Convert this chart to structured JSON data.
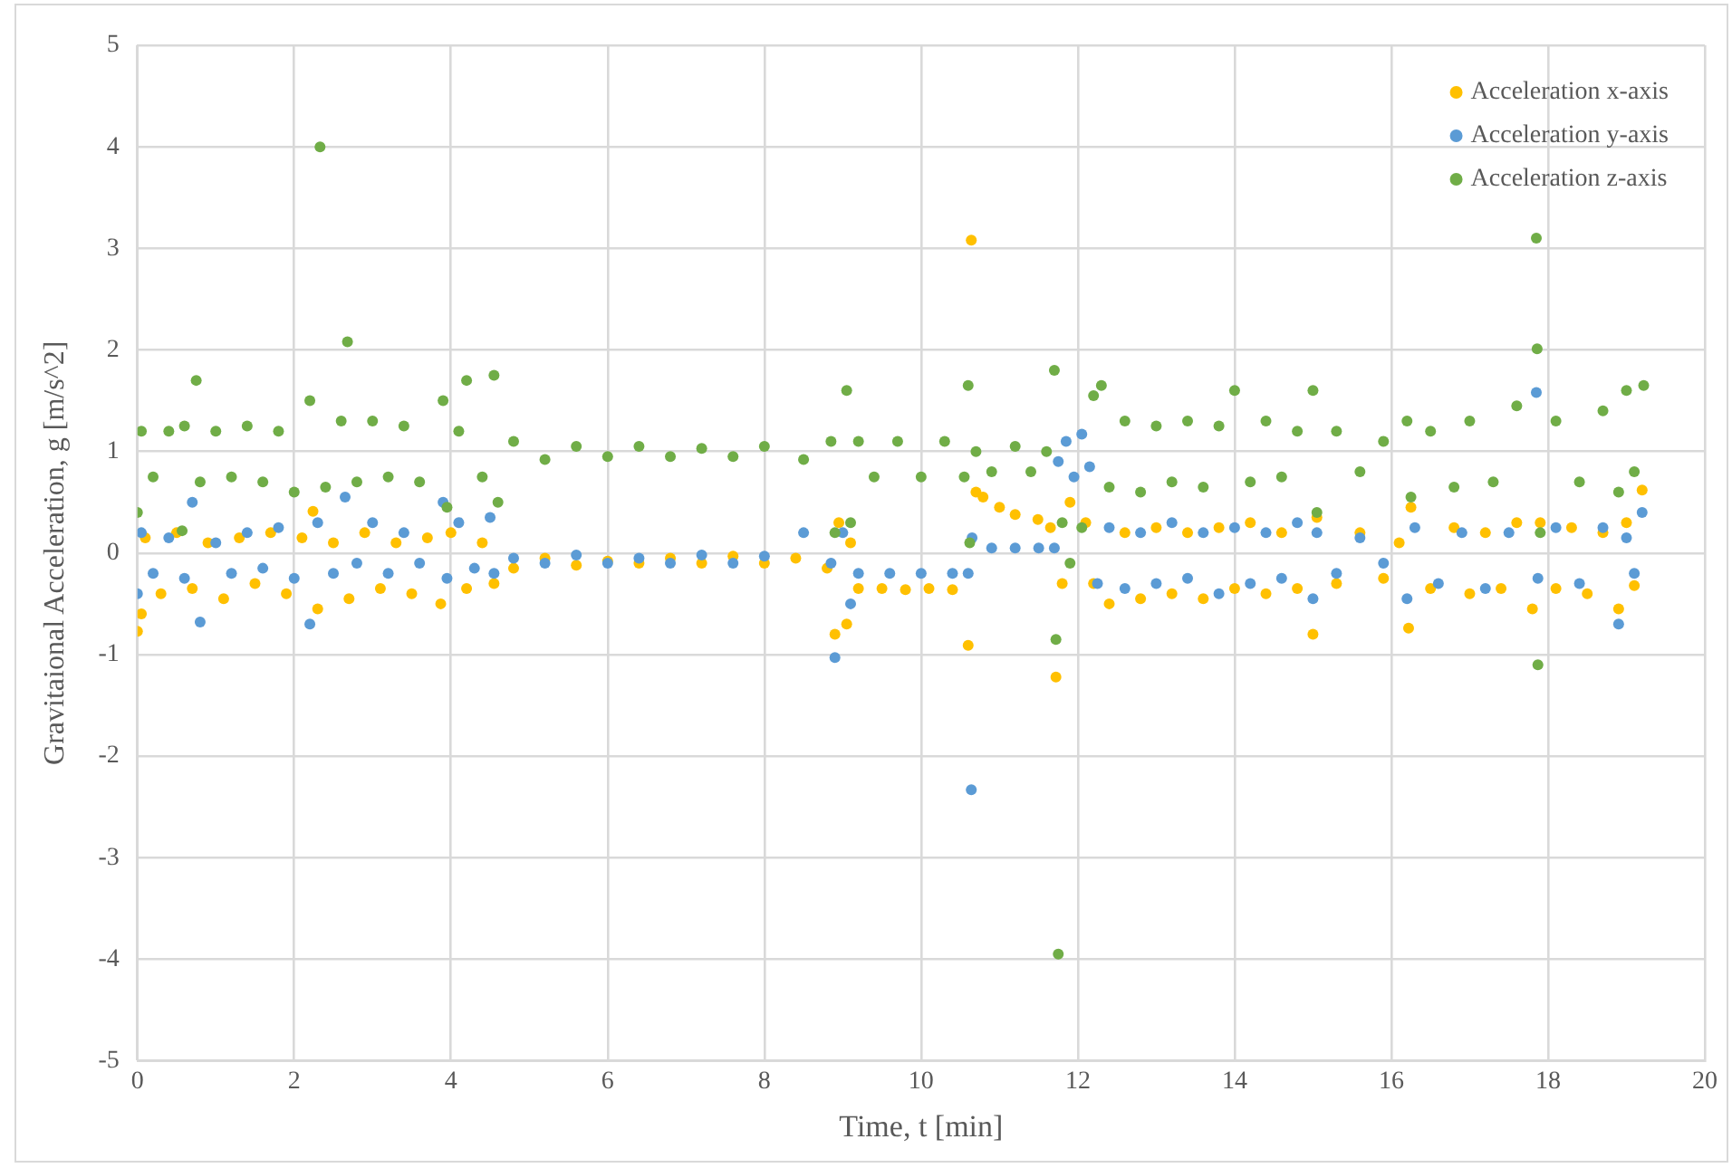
{
  "chart_data": {
    "type": "scatter",
    "xlabel": "Time, t [min]",
    "ylabel": "Gravitaional Acceleration, g [m/s^2]",
    "xlim": [
      0,
      20
    ],
    "xticks": [
      0,
      2,
      4,
      6,
      8,
      10,
      12,
      14,
      16,
      18,
      20
    ],
    "ylim": [
      -5,
      5
    ],
    "yticks": [
      -5,
      -4,
      -3,
      -2,
      -1,
      0,
      1,
      2,
      3,
      4,
      5
    ],
    "grid": true,
    "legend": "top right",
    "marker": "circle",
    "series": [
      {
        "name": "Acceleration x-axis",
        "color": "#ffc000",
        "x": [
          0,
          0.05,
          0.1,
          0.3,
          0.5,
          0.7,
          0.9,
          1.1,
          1.3,
          1.5,
          1.7,
          1.9,
          2.1,
          2.24,
          2.3,
          2.5,
          2.7,
          2.9,
          3.1,
          3.3,
          3.5,
          3.7,
          3.87,
          4.0,
          4.2,
          4.4,
          4.55,
          4.8,
          5.2,
          5.6,
          6.0,
          6.4,
          6.8,
          7.2,
          7.6,
          8.0,
          8.4,
          8.8,
          8.9,
          8.95,
          9.05,
          9.1,
          9.2,
          9.5,
          9.8,
          10.1,
          10.4,
          10.6,
          10.64,
          10.7,
          10.79,
          11.0,
          11.2,
          11.49,
          11.65,
          11.72,
          11.8,
          11.9,
          12.1,
          12.2,
          12.4,
          12.6,
          12.8,
          13.0,
          13.2,
          13.4,
          13.6,
          13.8,
          14.0,
          14.2,
          14.4,
          14.6,
          14.8,
          15.0,
          15.05,
          15.3,
          15.6,
          15.9,
          16.1,
          16.22,
          16.25,
          16.5,
          16.8,
          17.0,
          17.2,
          17.4,
          17.6,
          17.8,
          17.9,
          18.1,
          18.3,
          18.5,
          18.7,
          18.9,
          19.0,
          19.1,
          19.2
        ],
        "values": [
          -0.77,
          -0.6,
          0.15,
          -0.4,
          0.2,
          -0.35,
          0.1,
          -0.45,
          0.15,
          -0.3,
          0.2,
          -0.4,
          0.15,
          0.41,
          -0.55,
          0.1,
          -0.45,
          0.2,
          -0.35,
          0.1,
          -0.4,
          0.15,
          -0.5,
          0.2,
          -0.35,
          0.1,
          -0.3,
          -0.15,
          -0.05,
          -0.12,
          -0.08,
          -0.1,
          -0.05,
          -0.1,
          -0.03,
          -0.1,
          -0.05,
          -0.15,
          -0.8,
          0.3,
          -0.7,
          0.1,
          -0.35,
          -0.35,
          -0.36,
          -0.35,
          -0.36,
          -0.91,
          3.08,
          0.6,
          0.55,
          0.45,
          0.38,
          0.33,
          0.25,
          -1.22,
          -0.3,
          0.5,
          0.3,
          -0.3,
          -0.5,
          0.2,
          -0.45,
          0.25,
          -0.4,
          0.2,
          -0.45,
          0.25,
          -0.35,
          0.3,
          -0.4,
          0.2,
          -0.35,
          -0.8,
          0.35,
          -0.3,
          0.2,
          -0.25,
          0.1,
          -0.74,
          0.45,
          -0.35,
          0.25,
          -0.4,
          0.2,
          -0.35,
          0.3,
          -0.55,
          0.3,
          -0.35,
          0.25,
          -0.4,
          0.2,
          -0.55,
          0.3,
          -0.32,
          0.62
        ]
      },
      {
        "name": "Acceleration y-axis",
        "color": "#5b9bd5",
        "x": [
          0,
          0.05,
          0.2,
          0.4,
          0.6,
          0.7,
          0.8,
          1.0,
          1.2,
          1.4,
          1.6,
          1.8,
          2.0,
          2.2,
          2.3,
          2.5,
          2.65,
          2.8,
          3.0,
          3.2,
          3.4,
          3.6,
          3.9,
          3.95,
          4.1,
          4.3,
          4.5,
          4.55,
          4.8,
          5.2,
          5.6,
          6.0,
          6.4,
          6.8,
          7.2,
          7.6,
          8.0,
          8.5,
          8.85,
          8.9,
          9.0,
          9.1,
          9.2,
          9.6,
          10.0,
          10.4,
          10.6,
          10.64,
          10.65,
          10.9,
          11.2,
          11.5,
          11.7,
          11.75,
          11.85,
          11.95,
          12.05,
          12.15,
          12.25,
          12.4,
          12.6,
          12.8,
          13.0,
          13.2,
          13.4,
          13.6,
          13.8,
          14.0,
          14.2,
          14.4,
          14.6,
          14.8,
          15.0,
          15.05,
          15.3,
          15.6,
          15.9,
          16.2,
          16.3,
          16.6,
          16.9,
          17.2,
          17.5,
          17.85,
          17.87,
          18.1,
          18.4,
          18.7,
          18.9,
          19.0,
          19.1,
          19.2
        ],
        "values": [
          -0.4,
          0.2,
          -0.2,
          0.15,
          -0.25,
          0.5,
          -0.68,
          0.1,
          -0.2,
          0.2,
          -0.15,
          0.25,
          -0.25,
          -0.7,
          0.3,
          -0.2,
          0.55,
          -0.1,
          0.3,
          -0.2,
          0.2,
          -0.1,
          0.5,
          -0.25,
          0.3,
          -0.15,
          0.35,
          -0.2,
          -0.05,
          -0.1,
          -0.02,
          -0.1,
          -0.05,
          -0.1,
          -0.02,
          -0.1,
          -0.03,
          0.2,
          -0.1,
          -1.03,
          0.2,
          -0.5,
          -0.2,
          -0.2,
          -0.2,
          -0.2,
          -0.2,
          -2.33,
          0.15,
          0.05,
          0.05,
          0.05,
          0.05,
          0.9,
          1.1,
          0.75,
          1.17,
          0.85,
          -0.3,
          0.25,
          -0.35,
          0.2,
          -0.3,
          0.3,
          -0.25,
          0.2,
          -0.4,
          0.25,
          -0.3,
          0.2,
          -0.25,
          0.3,
          -0.45,
          0.2,
          -0.2,
          0.15,
          -0.1,
          -0.45,
          0.25,
          -0.3,
          0.2,
          -0.35,
          0.2,
          1.58,
          -0.25,
          0.25,
          -0.3,
          0.25,
          -0.7,
          0.15,
          -0.2,
          0.4
        ]
      },
      {
        "name": "Acceleration z-axis",
        "color": "#70ad47",
        "x": [
          0,
          0.05,
          0.2,
          0.4,
          0.57,
          0.6,
          0.75,
          0.8,
          1.0,
          1.2,
          1.4,
          1.6,
          1.8,
          2.0,
          2.2,
          2.33,
          2.4,
          2.6,
          2.68,
          2.8,
          3.0,
          3.2,
          3.4,
          3.6,
          3.9,
          3.95,
          4.1,
          4.2,
          4.4,
          4.55,
          4.6,
          4.8,
          5.2,
          5.6,
          6.0,
          6.4,
          6.8,
          7.2,
          7.6,
          8.0,
          8.5,
          8.85,
          8.9,
          9.05,
          9.1,
          9.2,
          9.4,
          9.7,
          10.0,
          10.3,
          10.55,
          10.6,
          10.62,
          10.7,
          10.9,
          11.2,
          11.4,
          11.6,
          11.7,
          11.72,
          11.75,
          11.8,
          11.9,
          12.05,
          12.2,
          12.3,
          12.4,
          12.6,
          12.8,
          13.0,
          13.2,
          13.4,
          13.6,
          13.8,
          14.0,
          14.2,
          14.4,
          14.6,
          14.8,
          15.0,
          15.05,
          15.3,
          15.6,
          15.9,
          16.2,
          16.25,
          16.5,
          16.8,
          17.0,
          17.3,
          17.6,
          17.85,
          17.86,
          17.87,
          17.9,
          18.1,
          18.4,
          18.7,
          18.9,
          19.0,
          19.1,
          19.22
        ],
        "values": [
          0.4,
          1.2,
          0.75,
          1.2,
          0.22,
          1.25,
          1.7,
          0.7,
          1.2,
          0.75,
          1.25,
          0.7,
          1.2,
          0.6,
          1.5,
          4.0,
          0.65,
          1.3,
          2.08,
          0.7,
          1.3,
          0.75,
          1.25,
          0.7,
          1.5,
          0.45,
          1.2,
          1.7,
          0.75,
          1.75,
          0.5,
          1.1,
          0.92,
          1.05,
          0.95,
          1.05,
          0.95,
          1.03,
          0.95,
          1.05,
          0.92,
          1.1,
          0.2,
          1.6,
          0.3,
          1.1,
          0.75,
          1.1,
          0.75,
          1.1,
          0.75,
          1.65,
          0.1,
          1.0,
          0.8,
          1.05,
          0.8,
          1.0,
          1.8,
          -0.85,
          -3.95,
          0.3,
          -0.1,
          0.25,
          1.55,
          1.65,
          0.65,
          1.3,
          0.6,
          1.25,
          0.7,
          1.3,
          0.65,
          1.25,
          1.6,
          0.7,
          1.3,
          0.75,
          1.2,
          1.6,
          0.4,
          1.2,
          0.8,
          1.1,
          1.3,
          0.55,
          1.2,
          0.65,
          1.3,
          0.7,
          1.45,
          3.1,
          2.01,
          -1.1,
          0.2,
          1.3,
          0.7,
          1.4,
          0.6,
          1.6,
          0.8,
          1.65
        ]
      }
    ]
  }
}
